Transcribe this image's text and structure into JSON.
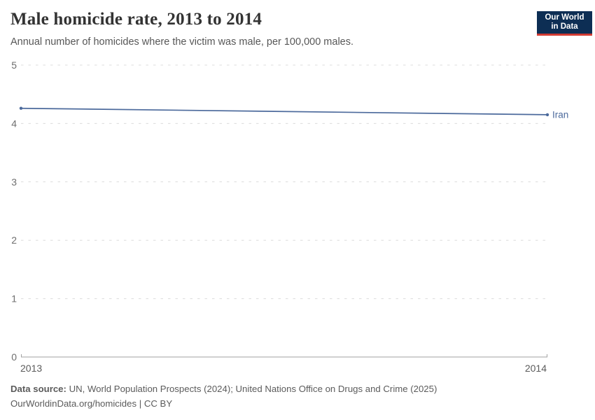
{
  "header": {
    "title": "Male homicide rate, 2013 to 2014",
    "subtitle": "Annual number of homicides where the victim was male, per 100,000 males.",
    "logo": {
      "line1": "Our World",
      "line2": "in Data",
      "bg_color": "#0d2e54",
      "accent_color": "#d13b33"
    }
  },
  "chart_data": {
    "type": "line",
    "title": "Male homicide rate, 2013 to 2014",
    "subtitle": "Annual number of homicides where the victim was male, per 100,000 males.",
    "xlabel": "",
    "ylabel": "",
    "x": [
      "2013",
      "2014"
    ],
    "series": [
      {
        "name": "Iran",
        "values": [
          4.26,
          4.15
        ],
        "color": "#4c6a9c"
      }
    ],
    "ylim": [
      0,
      5
    ],
    "yticks": [
      0,
      1,
      2,
      3,
      4,
      5
    ],
    "grid": "horizontal-dashed",
    "legend_position": "line-end-label"
  },
  "footer": {
    "data_source_label": "Data source:",
    "data_source_text": "UN, World Population Prospects (2024); United Nations Office on Drugs and Crime (2025)",
    "attribution": "OurWorldinData.org/homicides | CC BY"
  },
  "colors": {
    "grid": "#dcdcdc",
    "axis": "#a1a1a1",
    "tick_label": "#6e6e6e",
    "x_label": "#5b5b5b"
  }
}
